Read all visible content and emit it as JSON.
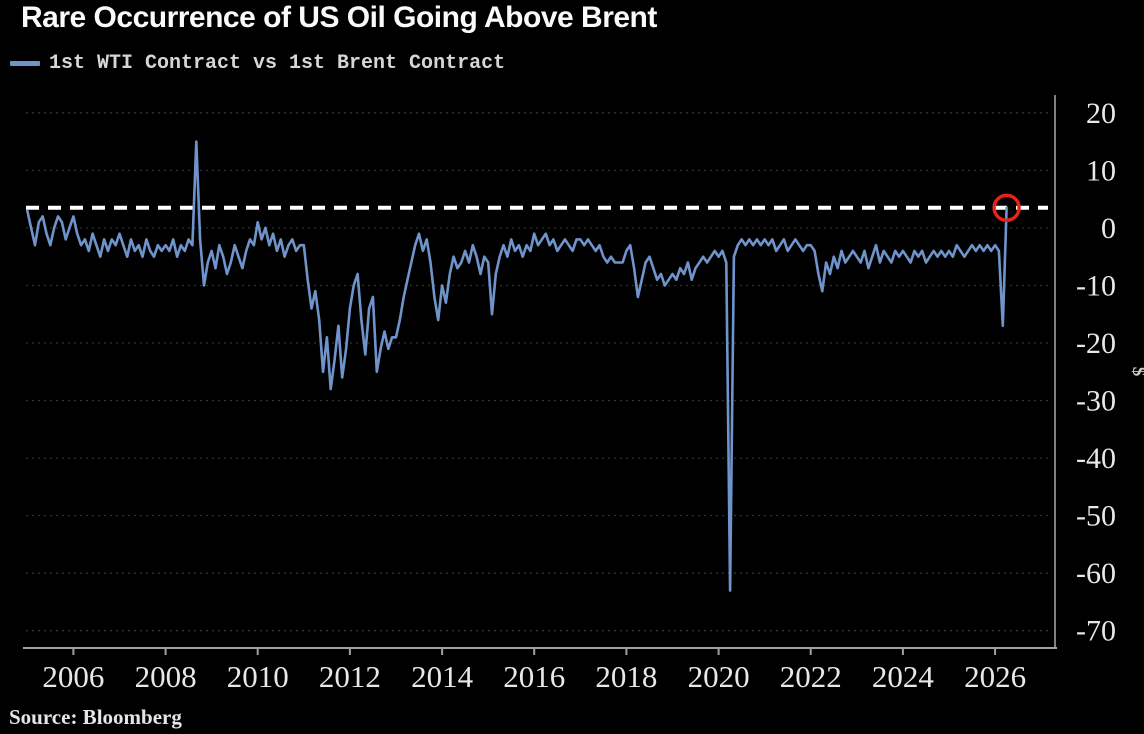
{
  "header": {
    "title": "Rare Occurrence of US Oil Going Above Brent"
  },
  "legend": {
    "label": "1st WTI Contract vs 1st Brent Contract",
    "marker_color": "#6f94cb"
  },
  "footer": {
    "source": "Source: Bloomberg"
  },
  "colors": {
    "background": "#000000",
    "series": "#6f94cb",
    "reference_line": "#ffffff",
    "grid": "#333333",
    "axis": "#a0a0a0",
    "tick_label": "#e8e8e8",
    "unit_label": "#c8c8c8",
    "annotation_red": "#e8231a"
  },
  "chart_data": {
    "type": "line",
    "title": "Rare Occurrence of US Oil Going Above Brent",
    "xlabel": "",
    "ylabel": "$",
    "legend_position": "top-left",
    "grid": "dotted-horizontal",
    "x_ticks": [
      2006,
      2008,
      2010,
      2012,
      2014,
      2016,
      2018,
      2020,
      2022,
      2024,
      2026
    ],
    "y_ticks": [
      20,
      10,
      0,
      -10,
      -20,
      -30,
      -40,
      -50,
      -60,
      -70
    ],
    "xlim": [
      2004.95,
      2027.3
    ],
    "ylim": [
      -73,
      23.1
    ],
    "reference_line": {
      "value": 3.5,
      "style": "dashed",
      "color": "#ffffff",
      "note": "level of latest value"
    },
    "annotation": {
      "type": "circle",
      "x_year": 2026.25,
      "value": 3.5,
      "color": "#e8231a",
      "label": "latest value circled"
    },
    "series": [
      {
        "name": "1st WTI Contract vs 1st Brent Contract",
        "units": "$ per barrel (WTI minus Brent)",
        "x_start_year": 2005,
        "x_step_months": 1,
        "values": [
          3,
          0,
          -3,
          1,
          2,
          -1,
          -3,
          0,
          2,
          1,
          -2,
          0,
          2,
          -1,
          -3,
          -2,
          -4,
          -1,
          -3,
          -5,
          -2,
          -4,
          -2,
          -3,
          -1,
          -3,
          -5,
          -2,
          -4,
          -3,
          -5,
          -2,
          -4,
          -5,
          -3,
          -4,
          -3,
          -4,
          -2,
          -5,
          -3,
          -4,
          -2,
          -3,
          15,
          -2,
          -10,
          -6,
          -4,
          -7,
          -3,
          -5,
          -8,
          -6,
          -3,
          -5,
          -7,
          -4,
          -2,
          -3,
          1,
          -2,
          0,
          -3,
          -1,
          -4,
          -2,
          -5,
          -3,
          -2,
          -4,
          -3,
          -3,
          -9,
          -14,
          -11,
          -16,
          -25,
          -19,
          -28,
          -23,
          -17,
          -26,
          -21,
          -14,
          -10,
          -8,
          -16,
          -22,
          -14,
          -12,
          -25,
          -21,
          -18,
          -21,
          -19,
          -19,
          -16,
          -12,
          -9,
          -6,
          -3,
          -1,
          -4,
          -2,
          -6,
          -12,
          -16,
          -10,
          -13,
          -8,
          -5,
          -7,
          -6,
          -4,
          -6,
          -3,
          -5,
          -8,
          -5,
          -6,
          -15,
          -8,
          -5,
          -3,
          -5,
          -2,
          -4,
          -3,
          -5,
          -3,
          -4,
          -1,
          -3,
          -2,
          -1,
          -3,
          -2,
          -4,
          -3,
          -2,
          -3,
          -4,
          -2,
          -2,
          -3,
          -2,
          -3,
          -4,
          -3,
          -5,
          -6,
          -5,
          -6,
          -6,
          -6,
          -4,
          -3,
          -7,
          -12,
          -9,
          -6,
          -5,
          -7,
          -9,
          -8,
          -10,
          -9,
          -8,
          -9,
          -7,
          -8,
          -6,
          -9,
          -7,
          -6,
          -5,
          -6,
          -5,
          -4,
          -5,
          -4,
          -6,
          -63,
          -5,
          -3,
          -2,
          -3,
          -2,
          -3,
          -2,
          -3,
          -2,
          -3,
          -2,
          -4,
          -3,
          -2,
          -4,
          -3,
          -2,
          -3,
          -4,
          -3,
          -3,
          -4,
          -8,
          -11,
          -6,
          -8,
          -5,
          -7,
          -4,
          -6,
          -5,
          -4,
          -5,
          -6,
          -4,
          -7,
          -5,
          -3,
          -6,
          -4,
          -5,
          -6,
          -4,
          -5,
          -4,
          -5,
          -6,
          -4,
          -5,
          -4,
          -6,
          -5,
          -4,
          -5,
          -4,
          -5,
          -4,
          -5,
          -3,
          -4,
          -5,
          -4,
          -3,
          -4,
          -3,
          -4,
          -3,
          -4,
          -3,
          -4,
          -17,
          3.5
        ]
      }
    ]
  }
}
